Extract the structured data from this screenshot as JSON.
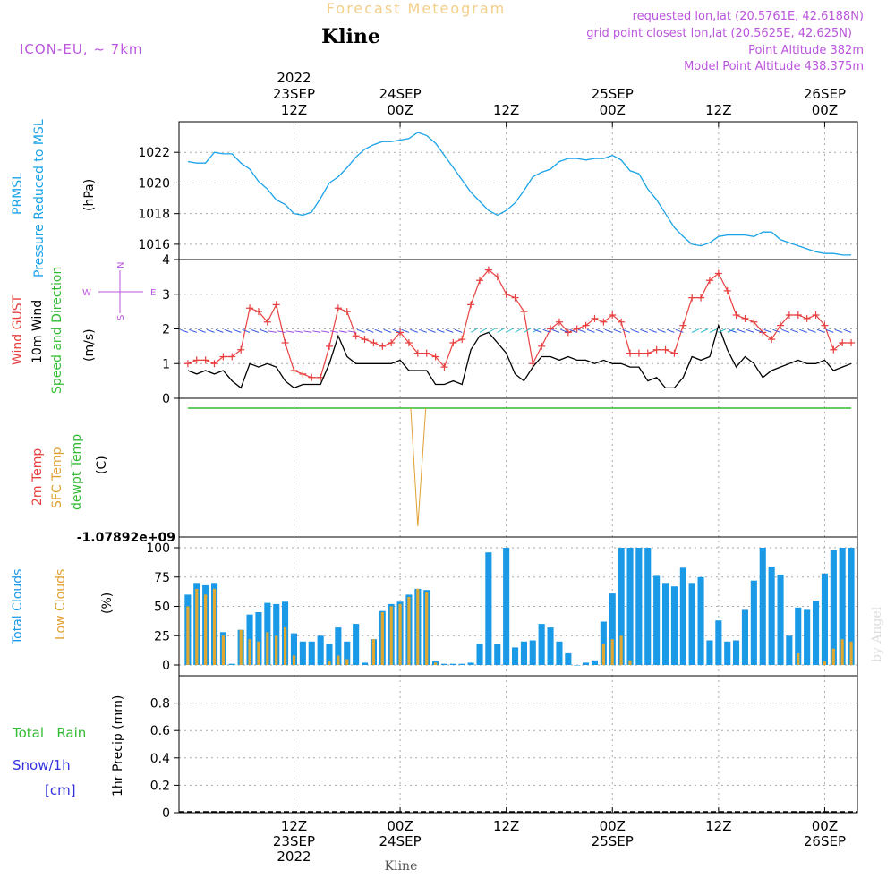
{
  "header": {
    "title": "Forecast Meteogram",
    "location": "Kline",
    "model": "ICON-EU, ~ 7km",
    "info_lines": [
      "requested lon,lat (20.5761E, 42.6188N)",
      "grid point closest lon,lat (20.5625E, 42.625N)",
      "Point Altitude 382m",
      "Model Point Altitude 438.375m"
    ],
    "footer_label": "Kline",
    "watermark": "by Angel"
  },
  "time_axis": {
    "top_labels": [
      {
        "t": 12,
        "lines": [
          "2022",
          "23SEP",
          "12Z"
        ]
      },
      {
        "t": 24,
        "lines": [
          "24SEP",
          "00Z"
        ]
      },
      {
        "t": 36,
        "lines": [
          "12Z"
        ]
      },
      {
        "t": 48,
        "lines": [
          "25SEP",
          "00Z"
        ]
      },
      {
        "t": 60,
        "lines": [
          "12Z"
        ]
      },
      {
        "t": 72,
        "lines": [
          "26SEP",
          "00Z"
        ]
      }
    ],
    "bottom_labels": [
      {
        "t": 12,
        "lines": [
          "12Z",
          "23SEP",
          "2022"
        ]
      },
      {
        "t": 24,
        "lines": [
          "00Z",
          "24SEP"
        ]
      },
      {
        "t": 36,
        "lines": [
          "12Z"
        ]
      },
      {
        "t": 48,
        "lines": [
          "00Z",
          "25SEP"
        ]
      },
      {
        "t": 60,
        "lines": [
          "12Z"
        ]
      },
      {
        "t": 72,
        "lines": [
          "00Z",
          "26SEP"
        ]
      }
    ]
  },
  "panels": {
    "pressure": {
      "label_1": "PRMSL",
      "label_2": "Pressure Reduced to MSL",
      "unit": "(hPa)"
    },
    "wind": {
      "gust_label": "Wind GUST",
      "wind_label": "10m Wind",
      "dir_label": "Speed and Direction",
      "unit": "(m/s)",
      "compass_w": "W",
      "compass_e": "E",
      "compass_n": "N",
      "compass_s": "S"
    },
    "temp": {
      "label_1": "2m Temp",
      "label_2": "SFC Temp",
      "label_3": "dewpt Temp",
      "unit": "(C)",
      "ymin_label": "-1.07892e+09"
    },
    "clouds": {
      "label_1": "Total Clouds",
      "label_2": "Low Clouds",
      "unit": "(%)"
    },
    "precip": {
      "label_rain": "Total   Rain",
      "label_snow": "Snow/1h",
      "label_snow_unit": "[cm]",
      "unit": "1hr Precip (mm)"
    }
  },
  "colors": {
    "pressure": "#1aa3e8",
    "gust": "#e84040",
    "wind": "#000000",
    "green": "#33bb33",
    "orange": "#e0a030",
    "clouds_total": "#1a9ae6",
    "clouds_low": "#e0a830",
    "purple": "#bb55dd",
    "snow": "#3333dd"
  },
  "chart_data": [
    {
      "type": "line",
      "name": "pressure",
      "x": [
        0,
        1,
        2,
        3,
        4,
        5,
        6,
        7,
        8,
        9,
        10,
        11,
        12,
        13,
        14,
        15,
        16,
        17,
        18,
        19,
        20,
        21,
        22,
        23,
        24,
        25,
        26,
        27,
        28,
        29,
        30,
        31,
        32,
        33,
        34,
        35,
        36,
        37,
        38,
        39,
        40,
        41,
        42,
        43,
        44,
        45,
        46,
        47,
        48,
        49,
        50,
        51,
        52,
        53,
        54,
        55,
        56,
        57,
        58,
        59,
        60,
        61,
        62,
        63,
        64,
        65,
        66,
        67,
        68,
        69,
        70,
        71,
        72,
        73,
        74,
        75
      ],
      "values": [
        1021.4,
        1021.3,
        1021.3,
        1022.0,
        1021.9,
        1021.9,
        1021.3,
        1020.9,
        1020.1,
        1019.6,
        1018.9,
        1018.6,
        1018.0,
        1017.9,
        1018.1,
        1019.0,
        1020.0,
        1020.4,
        1021.0,
        1021.7,
        1022.2,
        1022.5,
        1022.7,
        1022.7,
        1022.8,
        1022.9,
        1023.3,
        1023.1,
        1022.6,
        1021.8,
        1021.0,
        1020.2,
        1019.4,
        1018.8,
        1018.2,
        1017.9,
        1018.2,
        1018.7,
        1019.5,
        1020.4,
        1020.7,
        1020.9,
        1021.4,
        1021.6,
        1021.6,
        1021.5,
        1021.6,
        1021.6,
        1021.8,
        1021.5,
        1020.8,
        1020.6,
        1019.6,
        1018.9,
        1018.0,
        1017.1,
        1016.5,
        1016.0,
        1015.9,
        1016.1,
        1016.5,
        1016.6,
        1016.6,
        1016.6,
        1016.5,
        1016.8,
        1016.8,
        1016.3,
        1016.1,
        1015.9,
        1015.7,
        1015.5,
        1015.4,
        1015.4,
        1015.3,
        1015.3
      ],
      "xlim": [
        -1,
        75.7
      ],
      "ylim": [
        1015.0,
        1024.0
      ],
      "yticks": [
        1016,
        1018,
        1020,
        1022
      ]
    },
    {
      "type": "line",
      "name": "wind",
      "x": [
        0,
        1,
        2,
        3,
        4,
        5,
        6,
        7,
        8,
        9,
        10,
        11,
        12,
        13,
        14,
        15,
        16,
        17,
        18,
        19,
        20,
        21,
        22,
        23,
        24,
        25,
        26,
        27,
        28,
        29,
        30,
        31,
        32,
        33,
        34,
        35,
        36,
        37,
        38,
        39,
        40,
        41,
        42,
        43,
        44,
        45,
        46,
        47,
        48,
        49,
        50,
        51,
        52,
        53,
        54,
        55,
        56,
        57,
        58,
        59,
        60,
        61,
        62,
        63,
        64,
        65,
        66,
        67,
        68,
        69,
        70,
        71,
        72,
        73,
        74,
        75
      ],
      "gust": [
        1.0,
        1.1,
        1.1,
        1.0,
        1.2,
        1.2,
        1.4,
        2.6,
        2.5,
        2.2,
        2.7,
        1.6,
        0.8,
        0.7,
        0.6,
        0.6,
        1.5,
        2.6,
        2.5,
        1.8,
        1.7,
        1.6,
        1.5,
        1.6,
        1.9,
        1.6,
        1.3,
        1.3,
        1.2,
        0.9,
        1.6,
        1.7,
        2.7,
        3.4,
        3.7,
        3.5,
        3.0,
        2.9,
        2.5,
        1.0,
        1.5,
        2.0,
        2.2,
        1.9,
        2.0,
        2.1,
        2.3,
        2.2,
        2.4,
        2.2,
        1.3,
        1.3,
        1.3,
        1.4,
        1.4,
        1.3,
        2.1,
        2.9,
        2.9,
        3.4,
        3.6,
        3.1,
        2.4,
        2.3,
        2.2,
        1.9,
        1.7,
        2.1,
        2.4,
        2.4,
        2.3,
        2.4,
        2.1,
        1.4,
        1.6,
        1.6
      ],
      "speed": [
        0.8,
        0.7,
        0.8,
        0.7,
        0.8,
        0.5,
        0.3,
        1.0,
        0.9,
        1.0,
        0.9,
        0.5,
        0.3,
        0.4,
        0.4,
        0.4,
        1.0,
        1.8,
        1.2,
        1.0,
        1.0,
        1.0,
        1.0,
        1.0,
        1.1,
        0.8,
        0.8,
        0.8,
        0.4,
        0.4,
        0.5,
        0.4,
        1.4,
        1.8,
        1.9,
        1.6,
        1.3,
        0.7,
        0.5,
        0.9,
        1.2,
        1.2,
        1.1,
        1.2,
        1.1,
        1.1,
        1.0,
        1.1,
        1.0,
        1.0,
        0.9,
        0.9,
        0.5,
        0.6,
        0.3,
        0.3,
        0.6,
        1.2,
        1.1,
        1.2,
        2.1,
        1.4,
        0.9,
        1.2,
        1.0,
        0.6,
        0.8,
        0.9,
        1.0,
        1.1,
        1.0,
        1.0,
        1.1,
        0.8,
        0.9,
        1.0
      ],
      "xlim": [
        -1,
        75.7
      ],
      "ylim": [
        0,
        4
      ],
      "yticks": [
        0,
        1,
        2,
        3,
        4
      ]
    },
    {
      "type": "line",
      "name": "temperature",
      "ymin_label": "-1.07892e+09",
      "note": "all series flat except a single SFC Temp dip near t=26"
    },
    {
      "type": "bar",
      "name": "clouds",
      "x": [
        0,
        1,
        2,
        3,
        4,
        5,
        6,
        7,
        8,
        9,
        10,
        11,
        12,
        13,
        14,
        15,
        16,
        17,
        18,
        19,
        20,
        21,
        22,
        23,
        24,
        25,
        26,
        27,
        28,
        29,
        30,
        31,
        32,
        33,
        34,
        35,
        36,
        37,
        38,
        39,
        40,
        41,
        42,
        43,
        44,
        45,
        46,
        47,
        48,
        49,
        50,
        51,
        52,
        53,
        54,
        55,
        56,
        57,
        58,
        59,
        60,
        61,
        62,
        63,
        64,
        65,
        66,
        67,
        68,
        69,
        70,
        71,
        72,
        73,
        74,
        75
      ],
      "total": [
        60,
        70,
        68,
        70,
        28,
        1,
        30,
        43,
        45,
        53,
        52,
        54,
        27,
        20,
        20,
        25,
        18,
        32,
        20,
        35,
        2,
        22,
        46,
        52,
        54,
        60,
        65,
        64,
        3,
        1,
        1,
        1,
        2,
        18,
        96,
        18,
        100,
        15,
        20,
        21,
        35,
        32,
        20,
        10,
        0,
        2,
        4,
        37,
        61,
        100,
        100,
        100,
        100,
        76,
        70,
        67,
        83,
        70,
        75,
        21,
        38,
        20,
        21,
        47,
        72,
        100,
        84,
        77,
        25,
        49,
        47,
        55,
        78,
        98,
        100,
        100
      ],
      "low": [
        50,
        65,
        60,
        65,
        25,
        0,
        30,
        22,
        20,
        28,
        25,
        32,
        8,
        0,
        0,
        0,
        3,
        8,
        5,
        0,
        0,
        22,
        45,
        50,
        52,
        58,
        65,
        62,
        2,
        0,
        0,
        0,
        0,
        0,
        0,
        0,
        0,
        0,
        0,
        0,
        0,
        0,
        0,
        0,
        0,
        0,
        0,
        18,
        22,
        25,
        4,
        0,
        0,
        0,
        0,
        0,
        0,
        0,
        0,
        0,
        0,
        0,
        0,
        0,
        0,
        0,
        0,
        0,
        0,
        10,
        0,
        0,
        3,
        14,
        22,
        20
      ],
      "xlim": [
        -1,
        75.7
      ],
      "ylim": [
        0,
        100
      ],
      "yticks": [
        0,
        25,
        50,
        75,
        100
      ]
    },
    {
      "type": "bar",
      "name": "precip",
      "values": [],
      "xlim": [
        -1,
        75.7
      ],
      "ylim": [
        0,
        1.0
      ],
      "yticks": [
        0,
        0.2,
        0.4,
        0.6,
        0.8
      ]
    }
  ]
}
